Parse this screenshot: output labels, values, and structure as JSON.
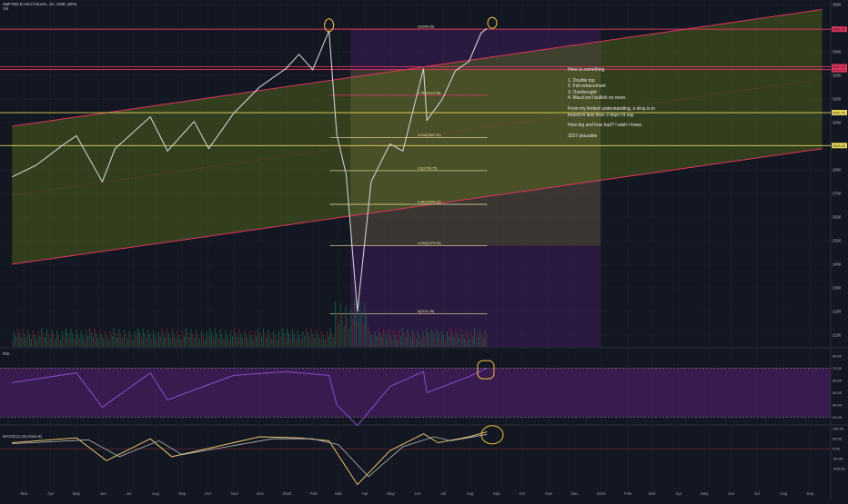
{
  "header": {
    "symbol": "S&P 500 E-mini Futures, 1D, CME_MINI",
    "sub": "Vol"
  },
  "panels": {
    "rsi_label": "RSI",
    "macd_label": "MACD(12,26,close,9)"
  },
  "annotation": {
    "title": "Here is something",
    "points": [
      "1. Double top",
      "2. Fell retracement",
      "3. Overbought",
      "4. Macd isn't bullish no more."
    ],
    "para1": "From my limited understanding, a drop is in bound in less than 3 days I'd say.",
    "para2": "How big and how bad? I wish I knew.",
    "para3": "3237 plausible"
  },
  "colors": {
    "background": "#131722",
    "price": "#cfcfcf",
    "channel": "#e0345e",
    "channel_fill": "#5a6e1a",
    "purple_zone": "#4a1f63",
    "fib": "#f0e6a8",
    "horizontal": "#e8d65a",
    "marker": "#f5c542",
    "volume_up": "#1e5a48",
    "volume_down": "#6b2230",
    "rsi": "#8a4cc9",
    "macd": "#e8c36a",
    "signal": "#b8b8b8"
  },
  "chart_data": [
    {
      "type": "line",
      "title": "S&P 500 E-mini Futures, 1D, CME_MINI",
      "y_axis_ticks": [
        3500,
        3400,
        3300,
        3200,
        3100,
        3000,
        2900,
        2800,
        2700,
        2600,
        2500,
        2400,
        2300,
        2200,
        2100
      ],
      "x_axis_ticks": [
        "Mar",
        "Apr",
        "May",
        "Jun",
        "Jul",
        "Aug",
        "Sep",
        "Oct",
        "Nov",
        "Dec",
        "2020",
        "Feb",
        "Mar",
        "Apr",
        "May",
        "Jun",
        "Jul",
        "Aug",
        "Sep",
        "Oct",
        "Nov",
        "Dec",
        "2021",
        "Feb",
        "Mar",
        "Apr",
        "May",
        "Jun",
        "Jul",
        "Aug",
        "Sep"
      ],
      "ylim": [
        2050,
        3520
      ],
      "series": [
        {
          "values_key": "price",
          "x": [
            "2019-02-15",
            "2019-03-15",
            "2019-04-15",
            "2019-05-01",
            "2019-05-31",
            "2019-06-15",
            "2019-07-26",
            "2019-08-15",
            "2019-09-15",
            "2019-10-02",
            "2019-10-31",
            "2019-11-30",
            "2019-12-31",
            "2020-01-15",
            "2020-01-31",
            "2020-02-19",
            "2020-02-28",
            "2020-03-10",
            "2020-03-23",
            "2020-04-08",
            "2020-04-30",
            "2020-05-15",
            "2020-06-08",
            "2020-06-12",
            "2020-06-30",
            "2020-07-15",
            "2020-07-31",
            "2020-08-14",
            "2020-08-21"
          ],
          "values": [
            2770,
            2820,
            2905,
            2945,
            2750,
            2890,
            3025,
            2880,
            3005,
            2890,
            3040,
            3150,
            3230,
            3290,
            3225,
            3390,
            2950,
            2780,
            2200,
            2750,
            2910,
            2880,
            3230,
            3010,
            3100,
            3220,
            3260,
            3380,
            3400
          ]
        }
      ],
      "horizontal_levels": [
        {
          "label": "3396.25",
          "value": 3396.25
        },
        {
          "label": "3225.25",
          "value": 3225.25
        },
        {
          "label": "3237.25",
          "value": 3237.25
        },
        {
          "label": "3042.75",
          "value": 3042.75
        },
        {
          "label": "2903.25",
          "value": 2903.25
        }
      ],
      "fib_levels": [
        {
          "label": "1(3396.25)",
          "value": 3396.25
        },
        {
          "label": "0.786(3116.56)",
          "value": 3116.56
        },
        {
          "label": "0.618(2937.25)",
          "value": 2937.25
        },
        {
          "label": "0.5(2796.75)",
          "value": 2796.75
        },
        {
          "label": "0.382(2654.25)",
          "value": 2654.25
        },
        {
          "label": "0.236(2479.25)",
          "value": 2479.25
        },
        {
          "label": "0(2191.25)",
          "value": 2191.25
        }
      ],
      "channel": {
        "lower_start": {
          "x": "2019-02-15",
          "y": 2400
        },
        "lower_end": {
          "x": "2021-09-15",
          "y": 2890
        },
        "upper_start": {
          "x": "2019-02-15",
          "y": 2985
        },
        "upper_end": {
          "x": "2021-09-15",
          "y": 3480
        }
      }
    },
    {
      "type": "line",
      "title": "RSI",
      "y_axis_ticks": [
        80,
        70,
        60,
        50,
        40,
        30
      ],
      "ylim": [
        25,
        85
      ],
      "overbought": 70,
      "oversold": 30,
      "series": [
        {
          "values_key": "rsi",
          "x": [
            "2019-02-15",
            "2019-05-01",
            "2019-05-31",
            "2019-07-26",
            "2019-08-15",
            "2019-10-31",
            "2019-12-31",
            "2020-02-19",
            "2020-02-28",
            "2020-03-23",
            "2020-04-30",
            "2020-06-08",
            "2020-06-12",
            "2020-07-31",
            "2020-08-21"
          ],
          "values": [
            58,
            66,
            38,
            66,
            44,
            64,
            67,
            64,
            40,
            23,
            55,
            67,
            50,
            63,
            70
          ]
        }
      ]
    },
    {
      "type": "line",
      "title": "MACD(12,26,close,9)",
      "y_axis_ticks": [
        100,
        50,
        0,
        -50,
        -100
      ],
      "ylim": [
        -200,
        110
      ],
      "series": [
        {
          "name": "MACD",
          "values_key": "macd",
          "x": [
            "2019-02-15",
            "2019-05-01",
            "2019-06-05",
            "2019-07-26",
            "2019-08-20",
            "2019-11-30",
            "2020-01-15",
            "2020-02-19",
            "2020-03-23",
            "2020-04-30",
            "2020-06-08",
            "2020-06-25",
            "2020-07-31",
            "2020-08-21"
          ],
          "values": [
            30,
            55,
            -60,
            50,
            -40,
            60,
            55,
            40,
            -180,
            -10,
            75,
            30,
            60,
            85
          ]
        },
        {
          "name": "Signal",
          "values_key": "signal",
          "x": [
            "2019-02-15",
            "2019-05-15",
            "2019-06-20",
            "2019-08-05",
            "2019-09-01",
            "2019-12-15",
            "2020-01-31",
            "2020-03-01",
            "2020-04-05",
            "2020-05-15",
            "2020-06-20",
            "2020-07-10",
            "2020-08-21"
          ],
          "values": [
            25,
            45,
            -40,
            40,
            -30,
            50,
            50,
            20,
            -140,
            10,
            60,
            40,
            72
          ]
        }
      ]
    }
  ]
}
